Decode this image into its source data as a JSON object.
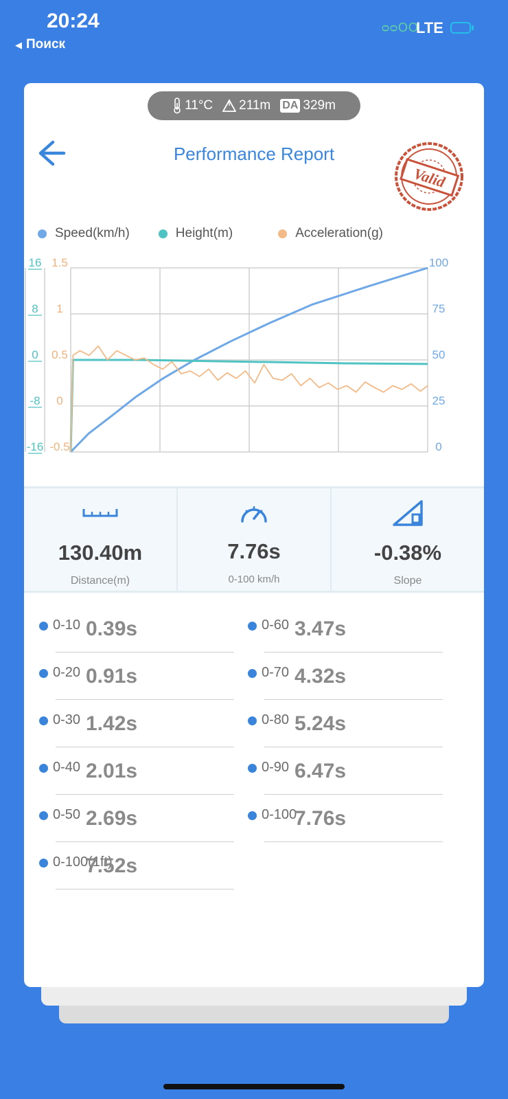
{
  "status_bar": {
    "time": "20:24",
    "back_label": "Поиск",
    "signal": "ᴑᴑOO",
    "network": "LTE"
  },
  "conditions": {
    "temperature": "11°C",
    "altitude": "211m",
    "da_label": "DA",
    "density_altitude": "329m"
  },
  "header": {
    "title": "Performance Report",
    "stamp_text": "Valid"
  },
  "legend": [
    {
      "label": "Speed(km/h)",
      "color": "#6fa8e6"
    },
    {
      "label": "Height(m)",
      "color": "#4fc2c2"
    },
    {
      "label": "Acceleration(g)",
      "color": "#f3b987"
    }
  ],
  "chart_data": {
    "type": "line",
    "x_ticks": 4,
    "axes": {
      "height_ticks": [
        "16",
        "8",
        "0",
        "-8",
        "-16"
      ],
      "accel_ticks": [
        "1.5",
        "1",
        "0.5",
        "0",
        "-0.5"
      ],
      "speed_ticks": [
        "100",
        "75",
        "50",
        "25",
        "0"
      ],
      "height_range": [
        -16,
        16
      ],
      "accel_range": [
        -0.5,
        1.5
      ],
      "speed_range": [
        0,
        100
      ]
    },
    "series": [
      {
        "name": "Speed(km/h)",
        "color": "#6fa8e6",
        "axis": "speed",
        "x": [
          0,
          0.39,
          0.91,
          1.42,
          2.01,
          2.69,
          3.47,
          4.32,
          5.24,
          6.47,
          7.76
        ],
        "values": [
          0,
          10,
          20,
          30,
          40,
          50,
          60,
          70,
          80,
          90,
          100
        ]
      },
      {
        "name": "Height(m)",
        "color": "#4fc2c2",
        "axis": "height",
        "x": [
          0,
          0.05,
          1.5,
          3,
          4.5,
          6,
          7.76
        ],
        "values": [
          -16,
          0,
          0,
          -0.2,
          -0.4,
          -0.6,
          -0.7
        ]
      },
      {
        "name": "Acceleration(g)",
        "color": "#f3b987",
        "axis": "accel",
        "x": [
          0,
          0.05,
          0.2,
          0.4,
          0.6,
          0.8,
          1.0,
          1.2,
          1.4,
          1.6,
          1.8,
          2.0,
          2.2,
          2.4,
          2.6,
          2.8,
          3.0,
          3.2,
          3.4,
          3.6,
          3.8,
          4.0,
          4.2,
          4.4,
          4.6,
          4.8,
          5.0,
          5.2,
          5.4,
          5.6,
          5.8,
          6.0,
          6.2,
          6.4,
          6.6,
          6.8,
          7.0,
          7.2,
          7.4,
          7.6,
          7.76
        ],
        "values": [
          -0.5,
          0.55,
          0.6,
          0.55,
          0.65,
          0.5,
          0.6,
          0.55,
          0.5,
          0.52,
          0.45,
          0.4,
          0.48,
          0.35,
          0.38,
          0.32,
          0.4,
          0.28,
          0.36,
          0.3,
          0.38,
          0.25,
          0.45,
          0.3,
          0.28,
          0.35,
          0.22,
          0.3,
          0.2,
          0.25,
          0.18,
          0.22,
          0.15,
          0.26,
          0.2,
          0.15,
          0.22,
          0.18,
          0.24,
          0.16,
          0.22
        ]
      }
    ]
  },
  "stats": [
    {
      "icon": "ruler-icon",
      "value": "130.40m",
      "label": "Distance(m)"
    },
    {
      "icon": "speedometer-icon",
      "value": "7.76s",
      "label": "0-100 km/h"
    },
    {
      "icon": "slope-icon",
      "value": "-0.38%",
      "label": "Slope"
    }
  ],
  "splits_left": [
    {
      "name": "0-10",
      "time": "0.39s"
    },
    {
      "name": "0-20",
      "time": "0.91s"
    },
    {
      "name": "0-30",
      "time": "1.42s"
    },
    {
      "name": "0-40",
      "time": "2.01s"
    },
    {
      "name": "0-50",
      "time": "2.69s"
    },
    {
      "name": "0-100(1ft)",
      "time": "7.52s"
    }
  ],
  "splits_right": [
    {
      "name": "0-60",
      "time": "3.47s"
    },
    {
      "name": "0-70",
      "time": "4.32s"
    },
    {
      "name": "0-80",
      "time": "5.24s"
    },
    {
      "name": "0-90",
      "time": "6.47s"
    },
    {
      "name": "0-100",
      "time": "7.76s"
    }
  ]
}
